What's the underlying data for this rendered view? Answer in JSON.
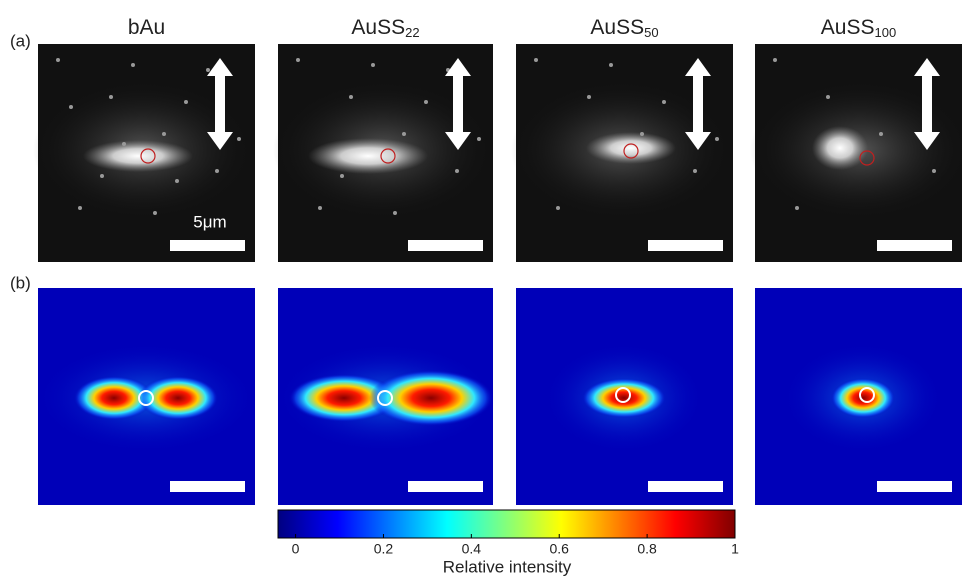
{
  "panel_labels": [
    "(a)",
    "(b)"
  ],
  "columns": [
    {
      "name": "bAu",
      "sub": null
    },
    {
      "name": "AuSS",
      "sub": "22"
    },
    {
      "name": "AuSS",
      "sub": "50"
    },
    {
      "name": "AuSS",
      "sub": "100"
    }
  ],
  "scale_bar": "5μm",
  "colorbar": {
    "lim": [
      -0.04,
      1
    ],
    "ticks": [
      0,
      0.2,
      0.4,
      0.6,
      0.8,
      1
    ],
    "label": "Relative intensity"
  }
}
